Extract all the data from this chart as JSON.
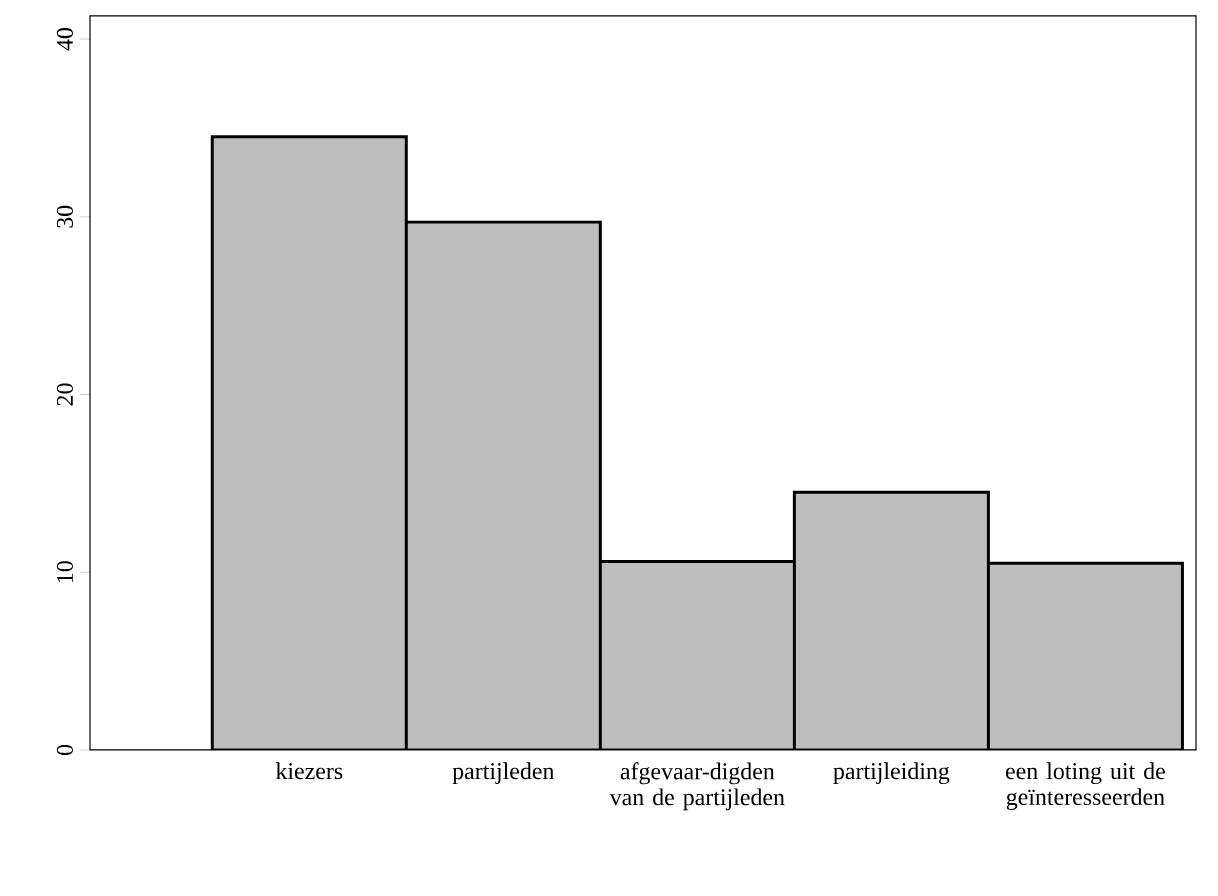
{
  "chart_data": {
    "type": "bar",
    "categories": [
      "kiezers",
      "partijleden",
      "afgevaar-digden van de partijleden",
      "partijleiding",
      "een loting uit de geïnteresseerden"
    ],
    "values": [
      34.5,
      29.7,
      10.6,
      14.5,
      10.5
    ],
    "color": "#bebebe",
    "ylim": [
      0,
      41.3
    ],
    "yticks": [
      0,
      10,
      20,
      30,
      40
    ]
  }
}
